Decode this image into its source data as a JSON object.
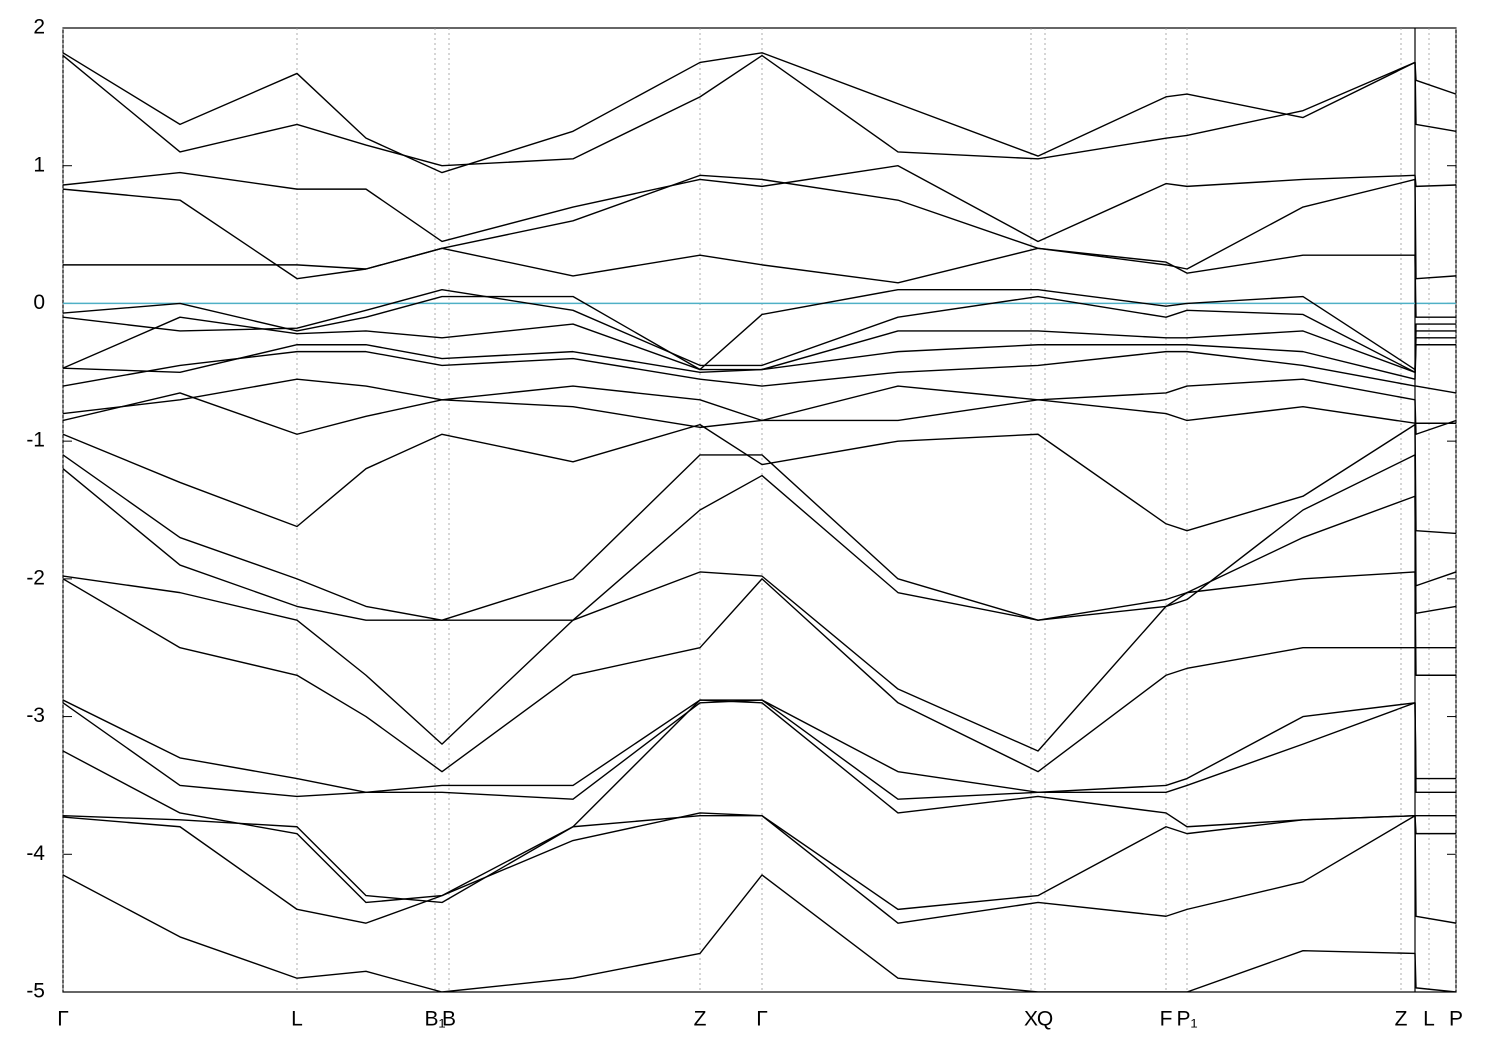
{
  "chart_data": {
    "type": "line",
    "x": [
      0,
      117,
      234,
      303,
      379,
      510,
      637,
      699,
      835,
      975,
      1103,
      1124,
      1240,
      1352,
      1353,
      1393
    ],
    "xlim": [
      0,
      1393
    ],
    "xticks": [
      {
        "value": 0,
        "label": "Γ"
      },
      {
        "value": 234,
        "label": "L"
      },
      {
        "value": 372,
        "label": "B₁"
      },
      {
        "value": 386,
        "label": "B"
      },
      {
        "value": 637,
        "label": "Z"
      },
      {
        "value": 699,
        "label": "Γ"
      },
      {
        "value": 968,
        "label": "X"
      },
      {
        "value": 982,
        "label": "Q"
      },
      {
        "value": 1103,
        "label": "F"
      },
      {
        "value": 1124,
        "label": "P₁"
      },
      {
        "value": 1338,
        "label": "Z"
      },
      {
        "value": 1366,
        "label": "L"
      },
      {
        "value": 1393,
        "label": "P"
      }
    ],
    "ylim": [
      -5,
      2
    ],
    "yticks": [
      -5,
      -4,
      -3,
      -2,
      -1,
      0,
      1,
      2
    ],
    "grid": true,
    "reference_line": {
      "value": 0,
      "color": "#4fb0c6"
    },
    "series": [
      {
        "color": "#000000",
        "values": [
          1.82,
          1.3,
          1.67,
          1.2,
          0.95,
          1.25,
          1.75,
          1.82,
          1.45,
          1.07,
          1.5,
          1.52,
          1.35,
          1.75,
          1.62,
          1.52
        ]
      },
      {
        "color": "#000000",
        "values": [
          1.8,
          1.1,
          1.3,
          1.15,
          1.0,
          1.05,
          1.5,
          1.8,
          1.1,
          1.05,
          1.2,
          1.22,
          1.4,
          1.75,
          1.3,
          1.25
        ]
      },
      {
        "color": "#000000",
        "values": [
          0.86,
          0.95,
          0.83,
          0.83,
          0.45,
          0.7,
          0.9,
          0.85,
          1.0,
          0.45,
          0.87,
          0.85,
          0.9,
          0.93,
          0.85,
          0.86
        ]
      },
      {
        "color": "#000000",
        "values": [
          0.83,
          0.75,
          0.18,
          0.25,
          0.4,
          0.6,
          0.93,
          0.9,
          0.75,
          0.4,
          0.28,
          0.25,
          0.7,
          0.9,
          0.18,
          0.2
        ]
      },
      {
        "color": "#000000",
        "values": [
          0.28,
          0.28,
          0.28,
          0.25,
          0.4,
          0.2,
          0.35,
          0.28,
          0.15,
          0.4,
          0.3,
          0.22,
          0.35,
          0.35,
          -0.1,
          -0.1
        ]
      },
      {
        "color": "#000000",
        "values": [
          -0.07,
          0.0,
          -0.2,
          -0.1,
          0.05,
          0.05,
          -0.48,
          -0.08,
          0.1,
          0.1,
          -0.02,
          0.0,
          0.05,
          -0.48,
          -0.15,
          -0.15
        ]
      },
      {
        "color": "#000000",
        "values": [
          -0.1,
          -0.2,
          -0.18,
          -0.05,
          0.1,
          -0.05,
          -0.45,
          -0.45,
          -0.1,
          0.05,
          -0.1,
          -0.05,
          -0.08,
          -0.5,
          -0.2,
          -0.2
        ]
      },
      {
        "color": "#000000",
        "values": [
          -0.47,
          -0.1,
          -0.22,
          -0.2,
          -0.25,
          -0.15,
          -0.48,
          -0.48,
          -0.2,
          -0.2,
          -0.25,
          -0.25,
          -0.2,
          -0.5,
          -0.25,
          -0.25
        ]
      },
      {
        "color": "#000000",
        "values": [
          -0.47,
          -0.5,
          -0.3,
          -0.3,
          -0.4,
          -0.35,
          -0.5,
          -0.48,
          -0.35,
          -0.3,
          -0.3,
          -0.3,
          -0.35,
          -0.55,
          -0.3,
          -0.3
        ]
      },
      {
        "color": "#000000",
        "values": [
          -0.6,
          -0.45,
          -0.35,
          -0.35,
          -0.45,
          -0.4,
          -0.55,
          -0.6,
          -0.5,
          -0.45,
          -0.35,
          -0.35,
          -0.45,
          -0.6,
          -0.6,
          -0.65
        ]
      },
      {
        "color": "#000000",
        "values": [
          -0.8,
          -0.7,
          -0.55,
          -0.6,
          -0.7,
          -0.6,
          -0.7,
          -0.85,
          -0.6,
          -0.7,
          -0.65,
          -0.6,
          -0.55,
          -0.7,
          -0.95,
          -0.85
        ]
      },
      {
        "color": "#000000",
        "values": [
          -0.85,
          -0.65,
          -0.95,
          -0.82,
          -0.7,
          -0.75,
          -0.9,
          -0.85,
          -0.85,
          -0.7,
          -0.8,
          -0.85,
          -0.75,
          -0.87,
          -0.87,
          -0.87
        ]
      },
      {
        "color": "#000000",
        "values": [
          -0.95,
          -1.3,
          -1.62,
          -1.2,
          -0.95,
          -1.15,
          -0.88,
          -1.17,
          -1.0,
          -0.95,
          -1.6,
          -1.65,
          -1.4,
          -0.88,
          -1.65,
          -1.67
        ]
      },
      {
        "color": "#000000",
        "values": [
          -1.1,
          -1.7,
          -2.0,
          -2.2,
          -2.3,
          -2.0,
          -1.1,
          -1.1,
          -2.0,
          -2.3,
          -2.2,
          -2.15,
          -1.5,
          -1.1,
          -2.05,
          -1.95
        ]
      },
      {
        "color": "#000000",
        "values": [
          -1.2,
          -1.9,
          -2.2,
          -2.3,
          -2.3,
          -2.3,
          -1.5,
          -1.25,
          -2.1,
          -2.3,
          -2.15,
          -2.1,
          -1.7,
          -1.4,
          -2.25,
          -2.2
        ]
      },
      {
        "color": "#000000",
        "values": [
          -1.98,
          -2.1,
          -2.3,
          -2.7,
          -3.2,
          -2.3,
          -1.95,
          -1.98,
          -2.8,
          -3.25,
          -2.2,
          -2.1,
          -2.0,
          -1.95,
          -2.7,
          -2.7
        ]
      },
      {
        "color": "#000000",
        "values": [
          -2.0,
          -2.5,
          -2.7,
          -3.0,
          -3.4,
          -2.7,
          -2.5,
          -2.0,
          -2.9,
          -3.4,
          -2.7,
          -2.65,
          -2.5,
          -2.5,
          -2.5,
          -2.5
        ]
      },
      {
        "color": "#000000",
        "values": [
          -2.88,
          -3.3,
          -3.45,
          -3.55,
          -3.5,
          -3.5,
          -2.88,
          -2.88,
          -3.4,
          -3.55,
          -3.5,
          -3.45,
          -3.0,
          -2.9,
          -3.45,
          -3.45
        ]
      },
      {
        "color": "#000000",
        "values": [
          -2.9,
          -3.5,
          -3.58,
          -3.55,
          -3.55,
          -3.6,
          -2.9,
          -2.88,
          -3.6,
          -3.55,
          -3.55,
          -3.5,
          -3.2,
          -2.9,
          -3.55,
          -3.55
        ]
      },
      {
        "color": "#000000",
        "values": [
          -3.25,
          -3.7,
          -3.85,
          -4.35,
          -4.3,
          -3.8,
          -2.88,
          -2.9,
          -3.7,
          -3.58,
          -3.7,
          -3.8,
          -3.75,
          -3.72,
          -3.72,
          -3.72
        ]
      },
      {
        "color": "#000000",
        "values": [
          -3.72,
          -3.75,
          -3.8,
          -4.3,
          -4.35,
          -3.8,
          -3.72,
          -3.72,
          -4.4,
          -4.3,
          -3.8,
          -3.85,
          -3.75,
          -3.72,
          -3.85,
          -3.85
        ]
      },
      {
        "color": "#000000",
        "values": [
          -3.73,
          -3.8,
          -4.4,
          -4.5,
          -4.3,
          -3.9,
          -3.7,
          -3.72,
          -4.5,
          -4.35,
          -4.45,
          -4.4,
          -4.2,
          -3.72,
          -4.45,
          -4.5
        ]
      },
      {
        "color": "#000000",
        "values": [
          -4.15,
          -4.6,
          -4.9,
          -4.85,
          -5.0,
          -4.9,
          -4.72,
          -4.15,
          -4.9,
          -5.0,
          -5.0,
          -5.0,
          -4.7,
          -4.72,
          -4.97,
          -5.0
        ]
      }
    ]
  }
}
